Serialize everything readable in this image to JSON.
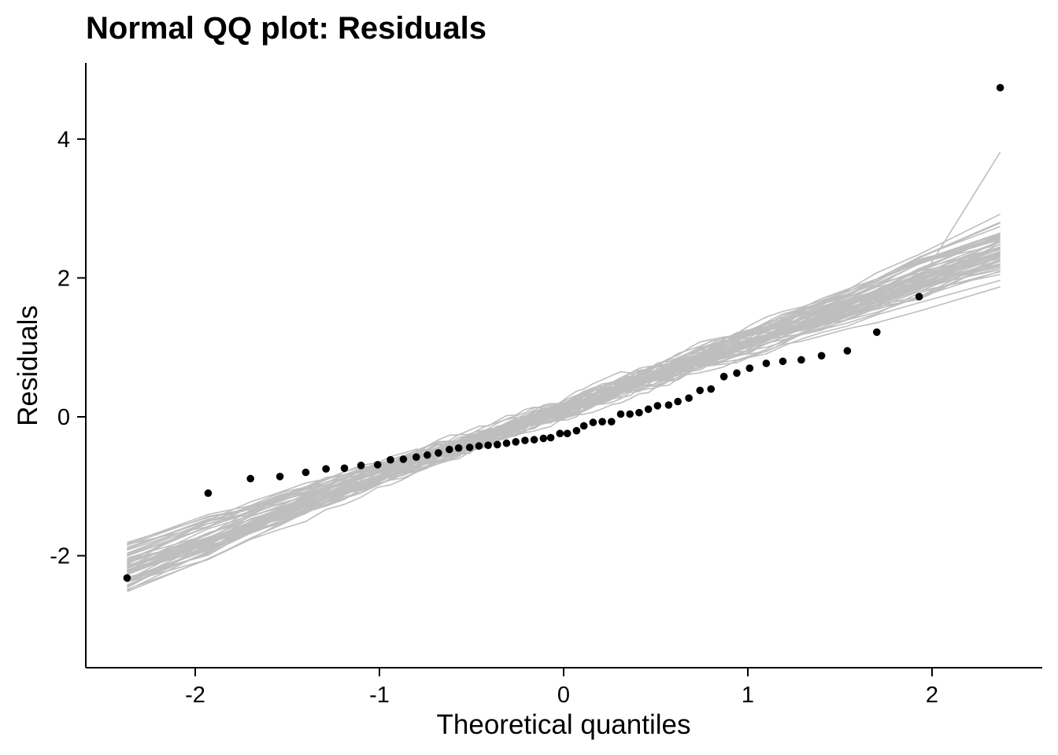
{
  "chart_data": {
    "type": "scatter",
    "title": "Normal QQ plot:  Residuals",
    "xlabel": "Theoretical quantiles",
    "ylabel": "Residuals",
    "xlim": [
      -2.6,
      2.6
    ],
    "ylim": [
      -3.6,
      5.1
    ],
    "x_ticks": [
      -2,
      -1,
      0,
      1,
      2
    ],
    "x_tick_labels": [
      "-2",
      "-1",
      "0",
      "1",
      "2"
    ],
    "y_ticks": [
      -2,
      0,
      2,
      4
    ],
    "y_tick_labels": [
      "-2",
      "0",
      "2",
      "4"
    ],
    "grid": false,
    "legend": "none",
    "colors": {
      "points": "#000000",
      "envelope": "#bebebe",
      "axes": "#000000"
    },
    "envelope_series_count": 60,
    "points": [
      [
        -2.37,
        -2.32
      ],
      [
        -1.93,
        -1.1
      ],
      [
        -1.7,
        -0.89
      ],
      [
        -1.54,
        -0.86
      ],
      [
        -1.4,
        -0.8
      ],
      [
        -1.29,
        -0.75
      ],
      [
        -1.19,
        -0.74
      ],
      [
        -1.1,
        -0.7
      ],
      [
        -1.01,
        -0.69
      ],
      [
        -0.94,
        -0.62
      ],
      [
        -0.87,
        -0.61
      ],
      [
        -0.8,
        -0.58
      ],
      [
        -0.74,
        -0.55
      ],
      [
        -0.68,
        -0.52
      ],
      [
        -0.62,
        -0.47
      ],
      [
        -0.57,
        -0.45
      ],
      [
        -0.51,
        -0.44
      ],
      [
        -0.46,
        -0.42
      ],
      [
        -0.41,
        -0.41
      ],
      [
        -0.36,
        -0.4
      ],
      [
        -0.31,
        -0.38
      ],
      [
        -0.26,
        -0.36
      ],
      [
        -0.21,
        -0.34
      ],
      [
        -0.16,
        -0.33
      ],
      [
        -0.11,
        -0.31
      ],
      [
        -0.07,
        -0.3
      ],
      [
        -0.02,
        -0.24
      ],
      [
        0.02,
        -0.24
      ],
      [
        0.07,
        -0.2
      ],
      [
        0.11,
        -0.13
      ],
      [
        0.16,
        -0.08
      ],
      [
        0.21,
        -0.07
      ],
      [
        0.26,
        -0.07
      ],
      [
        0.31,
        0.04
      ],
      [
        0.36,
        0.04
      ],
      [
        0.41,
        0.06
      ],
      [
        0.46,
        0.11
      ],
      [
        0.51,
        0.16
      ],
      [
        0.57,
        0.17
      ],
      [
        0.62,
        0.22
      ],
      [
        0.68,
        0.27
      ],
      [
        0.74,
        0.38
      ],
      [
        0.8,
        0.4
      ],
      [
        0.87,
        0.58
      ],
      [
        0.94,
        0.63
      ],
      [
        1.01,
        0.7
      ],
      [
        1.1,
        0.77
      ],
      [
        1.19,
        0.8
      ],
      [
        1.29,
        0.82
      ],
      [
        1.4,
        0.88
      ],
      [
        1.54,
        0.95
      ],
      [
        1.7,
        1.22
      ],
      [
        1.93,
        1.73
      ],
      [
        2.37,
        4.74
      ]
    ]
  }
}
